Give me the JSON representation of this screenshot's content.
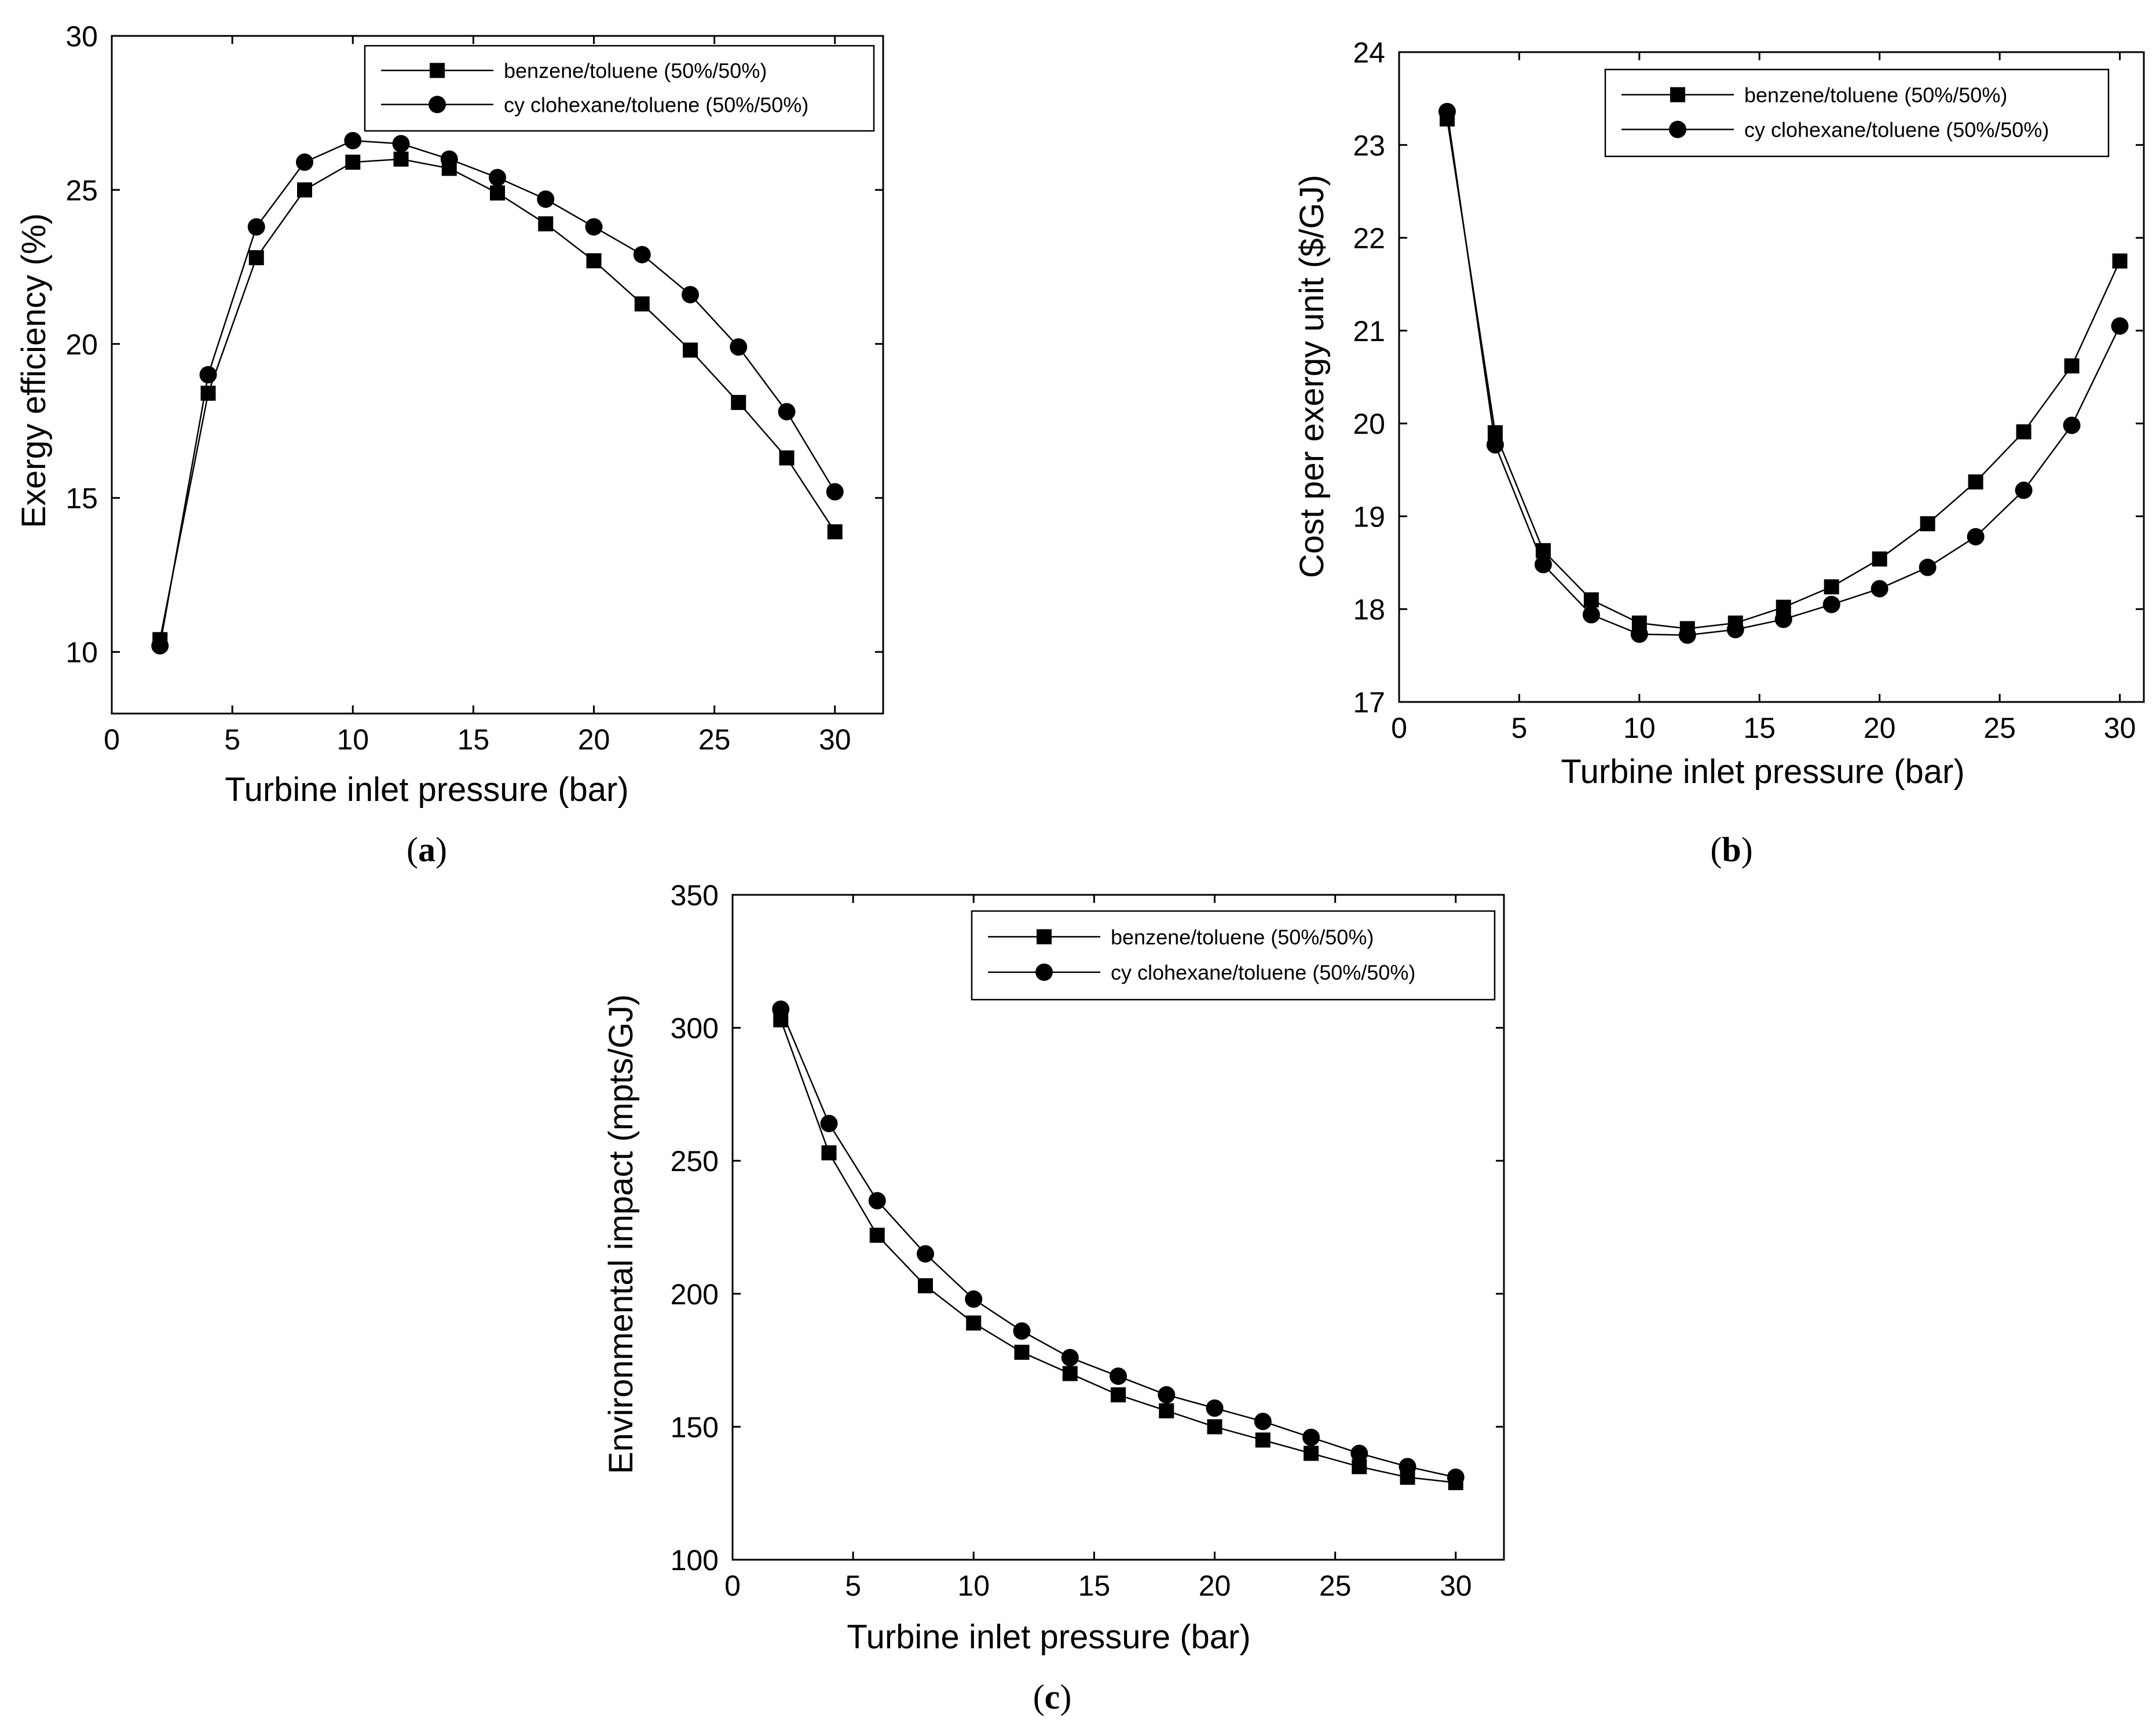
{
  "panel_labels": [
    {
      "open": "(",
      "letter": "a",
      "close": ")"
    },
    {
      "open": "(",
      "letter": "b",
      "close": ")"
    },
    {
      "open": "(",
      "letter": "c",
      "close": ")"
    }
  ],
  "chart_data": [
    {
      "type": "line",
      "title": "",
      "xlabel": "Turbine inlet pressure (bar)",
      "ylabel": "Exergy efficiency (%)",
      "xlim": [
        0,
        32
      ],
      "ylim": [
        8,
        30
      ],
      "xticks": [
        0,
        5,
        10,
        15,
        20,
        25,
        30
      ],
      "yticks": [
        10,
        15,
        20,
        25,
        30
      ],
      "grid": false,
      "legend_position": "top-right",
      "x": [
        2,
        4,
        6,
        8,
        10,
        12,
        14,
        16,
        18,
        20,
        22,
        24,
        26,
        28,
        30
      ],
      "series": [
        {
          "name": "benzene/toluene (50%/50%)",
          "marker": "square",
          "values": [
            10.4,
            18.4,
            22.8,
            25.0,
            25.9,
            26.0,
            25.7,
            24.9,
            23.9,
            22.7,
            21.3,
            19.8,
            18.1,
            16.3,
            13.9
          ]
        },
        {
          "name": "cy clohexane/toluene (50%/50%)",
          "marker": "circle",
          "values": [
            10.2,
            19.0,
            23.8,
            25.9,
            26.6,
            26.5,
            26.0,
            25.4,
            24.7,
            23.8,
            22.9,
            21.6,
            19.9,
            17.8,
            15.2
          ]
        }
      ]
    },
    {
      "type": "line",
      "title": "",
      "xlabel": "Turbine inlet pressure (bar)",
      "ylabel": "Cost per exergy unit ($/GJ)",
      "xlim": [
        0,
        31
      ],
      "ylim": [
        17,
        24
      ],
      "xticks": [
        0,
        5,
        10,
        15,
        20,
        25,
        30
      ],
      "yticks": [
        17,
        18,
        19,
        20,
        21,
        22,
        23,
        24
      ],
      "grid": false,
      "legend_position": "top-right",
      "x": [
        2,
        4,
        6,
        8,
        10,
        12,
        14,
        16,
        18,
        20,
        22,
        24,
        26,
        28,
        30
      ],
      "series": [
        {
          "name": "benzene/toluene (50%/50%)",
          "marker": "square",
          "values": [
            23.28,
            19.9,
            18.63,
            18.1,
            17.85,
            17.79,
            17.85,
            18.02,
            18.24,
            18.54,
            18.92,
            19.37,
            19.91,
            20.62,
            21.75
          ]
        },
        {
          "name": "cy clohexane/toluene (50%/50%)",
          "marker": "circle",
          "values": [
            23.36,
            19.77,
            18.48,
            17.94,
            17.73,
            17.72,
            17.78,
            17.89,
            18.05,
            18.22,
            18.45,
            18.78,
            19.28,
            19.98,
            21.05
          ]
        }
      ]
    },
    {
      "type": "line",
      "title": "",
      "xlabel": "Turbine inlet pressure (bar)",
      "ylabel": "Environmental impact (mpts/GJ)",
      "xlim": [
        0,
        32
      ],
      "ylim": [
        100,
        350
      ],
      "xticks": [
        0,
        5,
        10,
        15,
        20,
        25,
        30
      ],
      "yticks": [
        100,
        150,
        200,
        250,
        300,
        350
      ],
      "grid": false,
      "legend_position": "top-right",
      "x": [
        2,
        4,
        6,
        8,
        10,
        12,
        14,
        16,
        18,
        20,
        22,
        24,
        26,
        28,
        30
      ],
      "series": [
        {
          "name": "benzene/toluene (50%/50%)",
          "marker": "square",
          "values": [
            303,
            253,
            222,
            203,
            189,
            178,
            170,
            162,
            156,
            150,
            145,
            140,
            135,
            131,
            129
          ]
        },
        {
          "name": "cy clohexane/toluene (50%/50%)",
          "marker": "circle",
          "values": [
            307,
            264,
            235,
            215,
            198,
            186,
            176,
            169,
            162,
            157,
            152,
            146,
            140,
            135,
            131
          ]
        }
      ]
    }
  ]
}
